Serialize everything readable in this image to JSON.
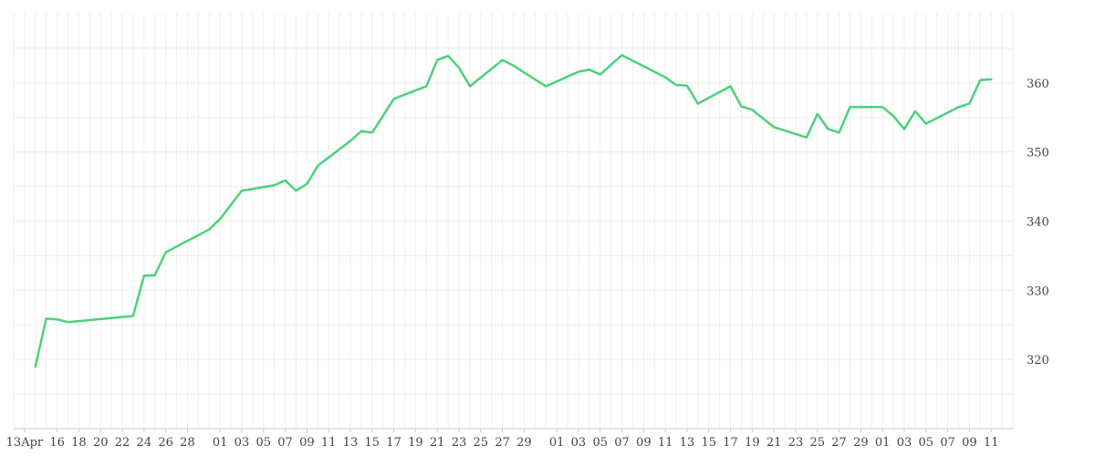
{
  "chart_data": {
    "type": "line",
    "title": "",
    "xlabel": "",
    "ylabel": "",
    "ylim": [
      310,
      370
    ],
    "y_ticks": [
      320,
      330,
      340,
      350,
      360
    ],
    "y_axis_position": "right",
    "grid": true,
    "line_color": "#4cd27a",
    "x_tick_labels": [
      "13Apr",
      "16",
      "18",
      "20",
      "22",
      "24",
      "26",
      "28",
      "01",
      "03",
      "05",
      "07",
      "09",
      "11",
      "13",
      "15",
      "17",
      "19",
      "21",
      "23",
      "25",
      "27",
      "29",
      "01",
      "03",
      "05",
      "07",
      "09",
      "11",
      "13",
      "15",
      "17",
      "19",
      "21",
      "23",
      "25",
      "27",
      "29",
      "01",
      "03",
      "05",
      "07",
      "09",
      "11"
    ],
    "series": [
      {
        "x": [
          "2020-04-14",
          "2020-04-15",
          "2020-04-16",
          "2020-04-17",
          "2020-04-23",
          "2020-04-24",
          "2020-04-25",
          "2020-04-26",
          "2020-04-30",
          "2020-05-01",
          "2020-05-03",
          "2020-05-06",
          "2020-05-07",
          "2020-05-08",
          "2020-05-09",
          "2020-05-10",
          "2020-05-13",
          "2020-05-14",
          "2020-05-15",
          "2020-05-16",
          "2020-05-17",
          "2020-05-20",
          "2020-05-21",
          "2020-05-22",
          "2020-05-23",
          "2020-05-24",
          "2020-05-27",
          "2020-05-28",
          "2020-05-31",
          "2020-06-03",
          "2020-06-04",
          "2020-06-05",
          "2020-06-07",
          "2020-06-11",
          "2020-06-12",
          "2020-06-13",
          "2020-06-14",
          "2020-06-17",
          "2020-06-18",
          "2020-06-19",
          "2020-06-21",
          "2020-06-24",
          "2020-06-25",
          "2020-06-26",
          "2020-06-27",
          "2020-06-28",
          "2020-07-01",
          "2020-07-02",
          "2020-07-03",
          "2020-07-04",
          "2020-07-05",
          "2020-07-08",
          "2020-07-09",
          "2020-07-10",
          "2020-07-11"
        ],
        "values": [
          319.0,
          325.9,
          325.8,
          325.4,
          326.3,
          332.1,
          332.2,
          335.5,
          338.8,
          340.3,
          344.4,
          345.2,
          345.9,
          344.4,
          345.4,
          348.0,
          351.6,
          353.0,
          352.8,
          355.2,
          357.7,
          359.5,
          363.3,
          363.9,
          362.2,
          359.5,
          363.3,
          362.5,
          359.5,
          361.6,
          361.9,
          361.2,
          364.0,
          360.8,
          359.7,
          359.6,
          357.0,
          359.5,
          356.6,
          356.1,
          353.6,
          352.1,
          355.5,
          353.3,
          352.8,
          356.5,
          356.5,
          355.2,
          353.3,
          355.9,
          354.1,
          356.5,
          357.0,
          360.4,
          360.5
        ]
      }
    ]
  }
}
